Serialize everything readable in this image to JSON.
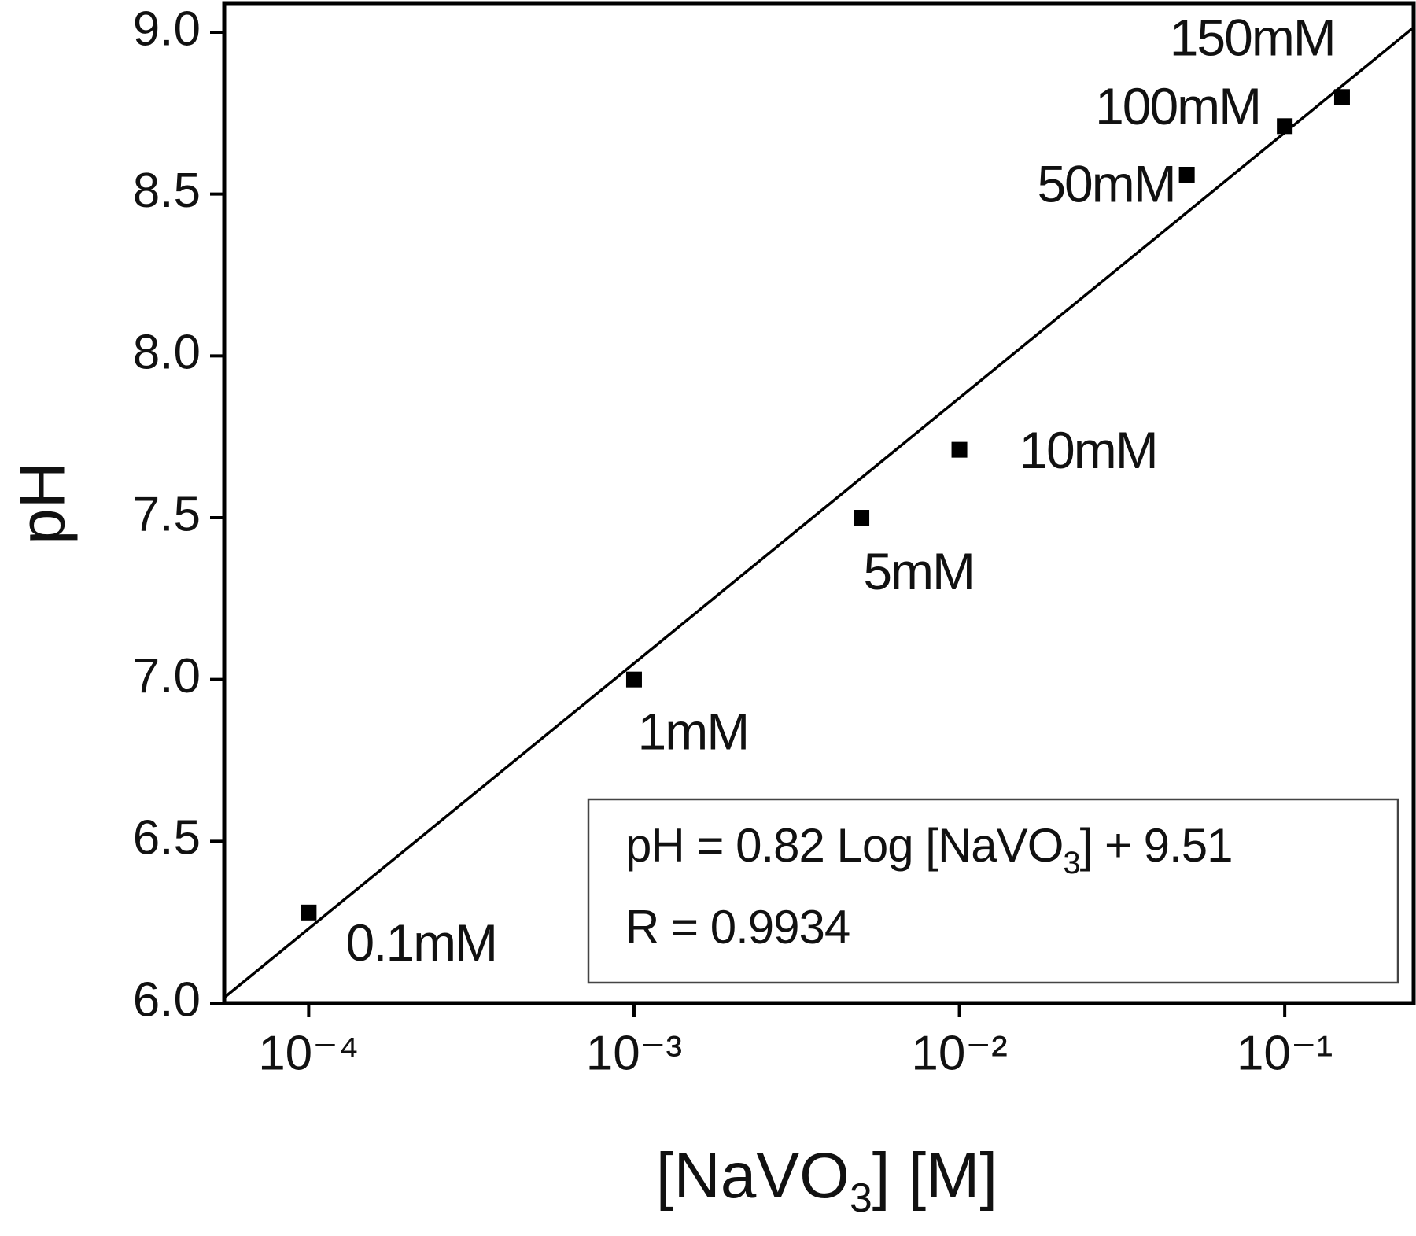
{
  "chart_data": {
    "type": "scatter",
    "x_label": {
      "text": "[NaVO",
      "sub": "3",
      "rest": "] [M]"
    },
    "y_label": "pH",
    "x": [
      0.0001,
      0.001,
      0.005,
      0.01,
      0.05,
      0.1,
      0.15
    ],
    "series": [
      {
        "color": "#000000",
        "values": [
          6.28,
          7.0,
          7.5,
          7.71,
          8.56,
          8.71,
          8.8
        ]
      }
    ],
    "point_labels": [
      "0.1mM",
      "1mM",
      "5mM",
      "10mM",
      "50mM",
      "100mM",
      "150mM"
    ],
    "fit": {
      "slope": 0.82,
      "intercept": 9.51
    },
    "equation": {
      "text": "pH = 0.82 Log [NaVO",
      "sub": "3",
      "rest": "] + 9.51"
    },
    "r_label": "R = 0.9934",
    "x_log": true,
    "xlim": [
      5.5e-05,
      0.249
    ],
    "ylim": [
      6.0,
      9.09
    ],
    "xticks": [
      {
        "value": 0.0001,
        "label": "10⁻⁴"
      },
      {
        "value": 0.001,
        "label": "10⁻³"
      },
      {
        "value": 0.01,
        "label": "10⁻²"
      },
      {
        "value": 0.1,
        "label": "10⁻¹"
      }
    ],
    "yticks": [
      {
        "value": 6.0,
        "label": "6.0"
      },
      {
        "value": 6.5,
        "label": "6.5"
      },
      {
        "value": 7.0,
        "label": "7.0"
      },
      {
        "value": 7.5,
        "label": "7.5"
      },
      {
        "value": 8.0,
        "label": "8.0"
      },
      {
        "value": 8.5,
        "label": "8.5"
      },
      {
        "value": 9.0,
        "label": "9.0"
      }
    ]
  }
}
